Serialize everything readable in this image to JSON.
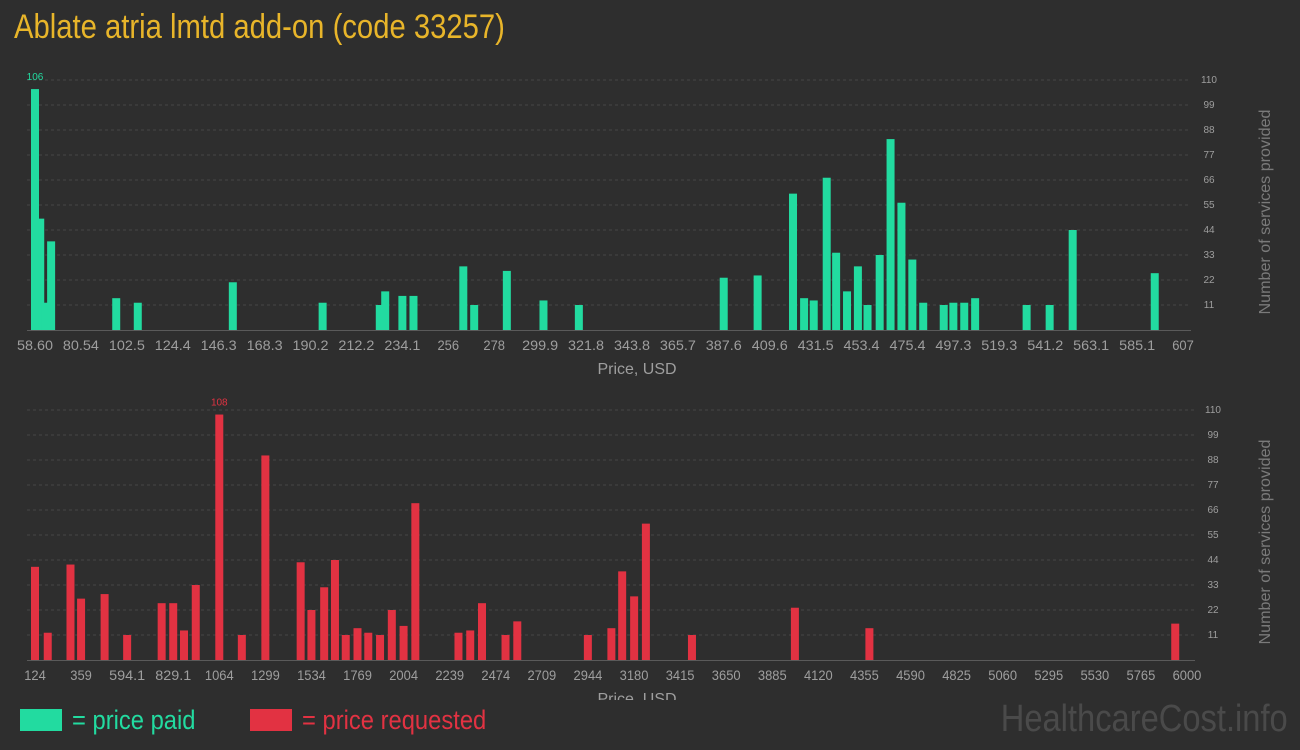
{
  "title": "Ablate atria lmtd add-on (code 33257)",
  "colors": {
    "title": "#e8b52a",
    "paid": "#22dba0",
    "requested": "#e23242",
    "axis_text": "#9e9e9e",
    "grid": "#454545",
    "background": "#2e2e2e",
    "watermark": "#4a4a4a"
  },
  "legend": {
    "paid_label": "= price paid",
    "requested_label": "= price requested"
  },
  "watermark": "HealthcareCost.info",
  "chart_data": [
    {
      "type": "bar",
      "series_name": "price paid",
      "xlabel": "Price, USD",
      "ylabel": "Number of services provided",
      "ylim": [
        0,
        110
      ],
      "yticks": [
        11,
        22,
        33,
        44,
        55,
        66,
        77,
        88,
        99,
        110
      ],
      "grid": true,
      "xlim": [
        58.6,
        607
      ],
      "xticks": [
        "58.60",
        "80.54",
        "102.5",
        "124.4",
        "146.3",
        "168.3",
        "190.2",
        "212.2",
        "234.1",
        "256",
        "278",
        "299.9",
        "321.8",
        "343.8",
        "365.7",
        "387.6",
        "409.6",
        "431.5",
        "453.4",
        "475.4",
        "497.3",
        "519.3",
        "541.2",
        "563.1",
        "585.1",
        "607"
      ],
      "max_label": "106",
      "bars": [
        {
          "x": 58.6,
          "value": 106
        },
        {
          "x": 61.1,
          "value": 49
        },
        {
          "x": 63.7,
          "value": 12
        },
        {
          "x": 66.3,
          "value": 39
        },
        {
          "x": 97.4,
          "value": 14
        },
        {
          "x": 107.7,
          "value": 12
        },
        {
          "x": 153.1,
          "value": 21
        },
        {
          "x": 196.0,
          "value": 12
        },
        {
          "x": 223.3,
          "value": 11
        },
        {
          "x": 225.9,
          "value": 17
        },
        {
          "x": 234.1,
          "value": 15
        },
        {
          "x": 239.4,
          "value": 15
        },
        {
          "x": 263.2,
          "value": 28
        },
        {
          "x": 268.4,
          "value": 11
        },
        {
          "x": 284.0,
          "value": 26
        },
        {
          "x": 301.5,
          "value": 13
        },
        {
          "x": 318.4,
          "value": 11
        },
        {
          "x": 387.6,
          "value": 23
        },
        {
          "x": 403.8,
          "value": 24
        },
        {
          "x": 420.7,
          "value": 60
        },
        {
          "x": 426.0,
          "value": 14
        },
        {
          "x": 430.6,
          "value": 13
        },
        {
          "x": 436.8,
          "value": 67
        },
        {
          "x": 441.3,
          "value": 34
        },
        {
          "x": 446.5,
          "value": 17
        },
        {
          "x": 451.7,
          "value": 28
        },
        {
          "x": 456.3,
          "value": 11
        },
        {
          "x": 462.1,
          "value": 33
        },
        {
          "x": 467.3,
          "value": 84
        },
        {
          "x": 472.5,
          "value": 56
        },
        {
          "x": 477.7,
          "value": 31
        },
        {
          "x": 482.9,
          "value": 12
        },
        {
          "x": 492.7,
          "value": 11
        },
        {
          "x": 497.3,
          "value": 12
        },
        {
          "x": 502.5,
          "value": 12
        },
        {
          "x": 507.7,
          "value": 14
        },
        {
          "x": 532.3,
          "value": 11
        },
        {
          "x": 543.3,
          "value": 11
        },
        {
          "x": 554.3,
          "value": 44
        },
        {
          "x": 593.5,
          "value": 25
        }
      ]
    },
    {
      "type": "bar",
      "series_name": "price requested",
      "xlabel": "Price, USD",
      "ylabel": "Number of services provided",
      "ylim": [
        0,
        110
      ],
      "yticks": [
        11,
        22,
        33,
        44,
        55,
        66,
        77,
        88,
        99,
        110
      ],
      "grid": true,
      "xlim": [
        124,
        6000
      ],
      "xticks": [
        "124",
        "359",
        "594.1",
        "829.1",
        "1064",
        "1299",
        "1534",
        "1769",
        "2004",
        "2239",
        "2474",
        "2709",
        "2944",
        "3180",
        "3415",
        "3650",
        "3885",
        "4120",
        "4355",
        "4590",
        "4825",
        "5060",
        "5295",
        "5530",
        "5765",
        "6000"
      ],
      "max_label": "108",
      "bars": [
        {
          "x": 124,
          "value": 41
        },
        {
          "x": 189,
          "value": 12
        },
        {
          "x": 305,
          "value": 42
        },
        {
          "x": 359,
          "value": 27
        },
        {
          "x": 479,
          "value": 29
        },
        {
          "x": 594,
          "value": 11
        },
        {
          "x": 770,
          "value": 25
        },
        {
          "x": 829,
          "value": 25
        },
        {
          "x": 884,
          "value": 13
        },
        {
          "x": 944,
          "value": 33
        },
        {
          "x": 1064,
          "value": 108
        },
        {
          "x": 1179,
          "value": 11
        },
        {
          "x": 1299,
          "value": 90
        },
        {
          "x": 1479,
          "value": 43
        },
        {
          "x": 1534,
          "value": 22
        },
        {
          "x": 1599,
          "value": 32
        },
        {
          "x": 1654,
          "value": 44
        },
        {
          "x": 1709,
          "value": 11
        },
        {
          "x": 1769,
          "value": 14
        },
        {
          "x": 1824,
          "value": 12
        },
        {
          "x": 1884,
          "value": 11
        },
        {
          "x": 1944,
          "value": 22
        },
        {
          "x": 2004,
          "value": 15
        },
        {
          "x": 2064,
          "value": 69
        },
        {
          "x": 2284,
          "value": 12
        },
        {
          "x": 2344,
          "value": 13
        },
        {
          "x": 2404,
          "value": 25
        },
        {
          "x": 2524,
          "value": 11
        },
        {
          "x": 2584,
          "value": 17
        },
        {
          "x": 2944,
          "value": 11
        },
        {
          "x": 3064,
          "value": 14
        },
        {
          "x": 3119,
          "value": 39
        },
        {
          "x": 3180,
          "value": 28
        },
        {
          "x": 3240,
          "value": 60
        },
        {
          "x": 3475,
          "value": 11
        },
        {
          "x": 4000,
          "value": 23
        },
        {
          "x": 4380,
          "value": 14
        },
        {
          "x": 5940,
          "value": 16
        }
      ]
    }
  ]
}
